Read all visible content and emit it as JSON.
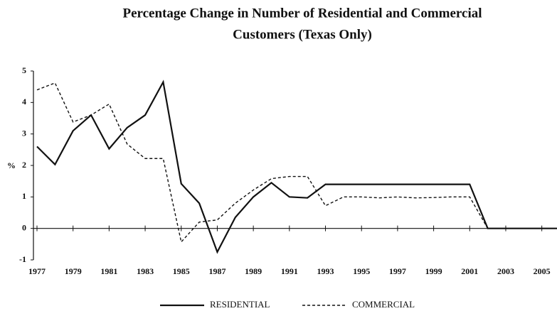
{
  "chart_data": {
    "type": "line",
    "title": "Percentage Change in Number of Residential and Commercial",
    "subtitle": "Customers (Texas Only)",
    "y_label": "%",
    "x": [
      1977,
      1978,
      1979,
      1980,
      1981,
      1982,
      1983,
      1984,
      1985,
      1986,
      1987,
      1988,
      1989,
      1990,
      1991,
      1992,
      1993,
      1994,
      1995,
      1996,
      1997,
      1998,
      1999,
      2000,
      2001,
      2002,
      2003,
      2004,
      2005,
      2006
    ],
    "series": [
      {
        "name": "RESIDENTIAL",
        "color": "#111111",
        "dash": "solid",
        "values": [
          2.6,
          2.03,
          3.1,
          3.6,
          2.53,
          3.2,
          3.6,
          4.65,
          1.42,
          0.8,
          -0.75,
          0.35,
          1.0,
          1.45,
          1.0,
          0.97,
          1.4,
          1.4,
          1.4,
          1.4,
          1.4,
          1.4,
          1.4,
          1.4,
          1.4,
          0,
          0,
          0,
          0,
          0
        ]
      },
      {
        "name": "COMMERCIAL",
        "color": "#111111",
        "dash": "dotted",
        "values": [
          4.4,
          4.62,
          3.38,
          3.6,
          3.95,
          2.68,
          2.22,
          2.22,
          -0.43,
          0.2,
          0.27,
          0.8,
          1.22,
          1.58,
          1.65,
          1.65,
          0.72,
          1.0,
          1.0,
          0.97,
          1.0,
          0.97,
          0.98,
          1.0,
          1.0,
          0,
          0,
          0,
          0,
          0
        ]
      }
    ],
    "xlim": [
      1977,
      2006
    ],
    "xticks": [
      1977,
      1979,
      1981,
      1983,
      1985,
      1987,
      1989,
      1991,
      1993,
      1995,
      1997,
      1999,
      2001,
      2003,
      2005
    ],
    "ylim": [
      -1,
      5
    ],
    "yticks": [
      5,
      4,
      3,
      2,
      1,
      0,
      -1
    ],
    "legend": "bottom"
  }
}
